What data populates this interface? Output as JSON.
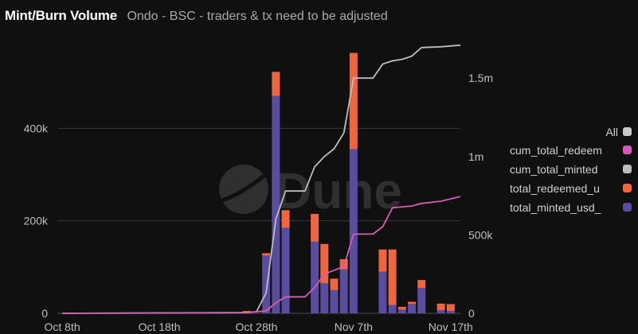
{
  "header": {
    "title": "Mint/Burn Volume",
    "subtitle": "Ondo - BSC - traders & tx need to be adjusted"
  },
  "watermark": "Dune",
  "colors": {
    "minted": "#5a4c9e",
    "redeemed": "#ee6640",
    "cum_minted": "#bdbdbd",
    "cum_redeemed": "#d45cb8",
    "grid": "#3a3a3a",
    "legend_all": "#c8c8c8"
  },
  "legend": {
    "all": "All",
    "items": [
      {
        "label": "cum_total_redeem",
        "color_key": "cum_redeemed"
      },
      {
        "label": "cum_total_minted",
        "color_key": "cum_minted"
      },
      {
        "label": "total_redeemed_u",
        "color_key": "redeemed"
      },
      {
        "label": "total_minted_usd_",
        "color_key": "minted"
      }
    ]
  },
  "chart_data": {
    "type": "bar",
    "stacked": true,
    "x_start": "2023-10-08",
    "x_ticks": [
      {
        "label": "Oct 8th",
        "day": 0
      },
      {
        "label": "Oct 18th",
        "day": 10
      },
      {
        "label": "Oct 28th",
        "day": 20
      },
      {
        "label": "Nov 7th",
        "day": 30
      },
      {
        "label": "Nov 17th",
        "day": 40
      }
    ],
    "y_left": {
      "range": [
        0,
        600000
      ],
      "ticks": [
        {
          "v": 0,
          "label": "0"
        },
        {
          "v": 200000,
          "label": "200k"
        },
        {
          "v": 400000,
          "label": "400k"
        }
      ],
      "grid": true
    },
    "y_right": {
      "range": [
        0,
        1770000
      ],
      "ticks": [
        {
          "v": 0,
          "label": "0"
        },
        {
          "v": 500000,
          "label": "500k"
        },
        {
          "v": 1000000,
          "label": "1m"
        },
        {
          "v": 1500000,
          "label": "1.5m"
        }
      ]
    },
    "bars": [
      {
        "day": 19,
        "minted": 2000,
        "redeemed": 3000
      },
      {
        "day": 21,
        "minted": 125000,
        "redeemed": 5000
      },
      {
        "day": 22,
        "minted": 470000,
        "redeemed": 52000
      },
      {
        "day": 23,
        "minted": 185000,
        "redeemed": 38000
      },
      {
        "day": 26,
        "minted": 155000,
        "redeemed": 60000
      },
      {
        "day": 27,
        "minted": 65000,
        "redeemed": 85000
      },
      {
        "day": 28,
        "minted": 50000,
        "redeemed": 25000
      },
      {
        "day": 29,
        "minted": 95000,
        "redeemed": 22000
      },
      {
        "day": 30,
        "minted": 355000,
        "redeemed": 208000
      },
      {
        "day": 33,
        "minted": 90000,
        "redeemed": 48000
      },
      {
        "day": 34,
        "minted": 18000,
        "redeemed": 120000
      },
      {
        "day": 35,
        "minted": 8000,
        "redeemed": 6000
      },
      {
        "day": 36,
        "minted": 20000,
        "redeemed": 5000
      },
      {
        "day": 37,
        "minted": 55000,
        "redeemed": 17000
      },
      {
        "day": 39,
        "minted": 7000,
        "redeemed": 14000
      },
      {
        "day": 40,
        "minted": 5000,
        "redeemed": 15000
      }
    ],
    "cum_total_minted": [
      [
        0,
        0
      ],
      [
        19,
        5000
      ],
      [
        20,
        10000
      ],
      [
        21,
        130000
      ],
      [
        22,
        600000
      ],
      [
        23,
        780000
      ],
      [
        25,
        780000
      ],
      [
        26,
        935000
      ],
      [
        27,
        1000000
      ],
      [
        28,
        1050000
      ],
      [
        29,
        1150000
      ],
      [
        30,
        1500000
      ],
      [
        32,
        1500000
      ],
      [
        33,
        1590000
      ],
      [
        34,
        1610000
      ],
      [
        35,
        1620000
      ],
      [
        36,
        1640000
      ],
      [
        37,
        1695000
      ],
      [
        39,
        1700000
      ],
      [
        40,
        1705000
      ],
      [
        41,
        1710000
      ]
    ],
    "cum_total_redeemed": [
      [
        0,
        0
      ],
      [
        19,
        3000
      ],
      [
        20,
        10000
      ],
      [
        21,
        15000
      ],
      [
        22,
        67000
      ],
      [
        23,
        105000
      ],
      [
        25,
        105000
      ],
      [
        26,
        165000
      ],
      [
        27,
        250000
      ],
      [
        28,
        275000
      ],
      [
        29,
        297000
      ],
      [
        30,
        505000
      ],
      [
        32,
        505000
      ],
      [
        33,
        553000
      ],
      [
        34,
        673000
      ],
      [
        35,
        679000
      ],
      [
        36,
        684000
      ],
      [
        37,
        701000
      ],
      [
        39,
        715000
      ],
      [
        40,
        730000
      ],
      [
        41,
        745000
      ]
    ]
  }
}
